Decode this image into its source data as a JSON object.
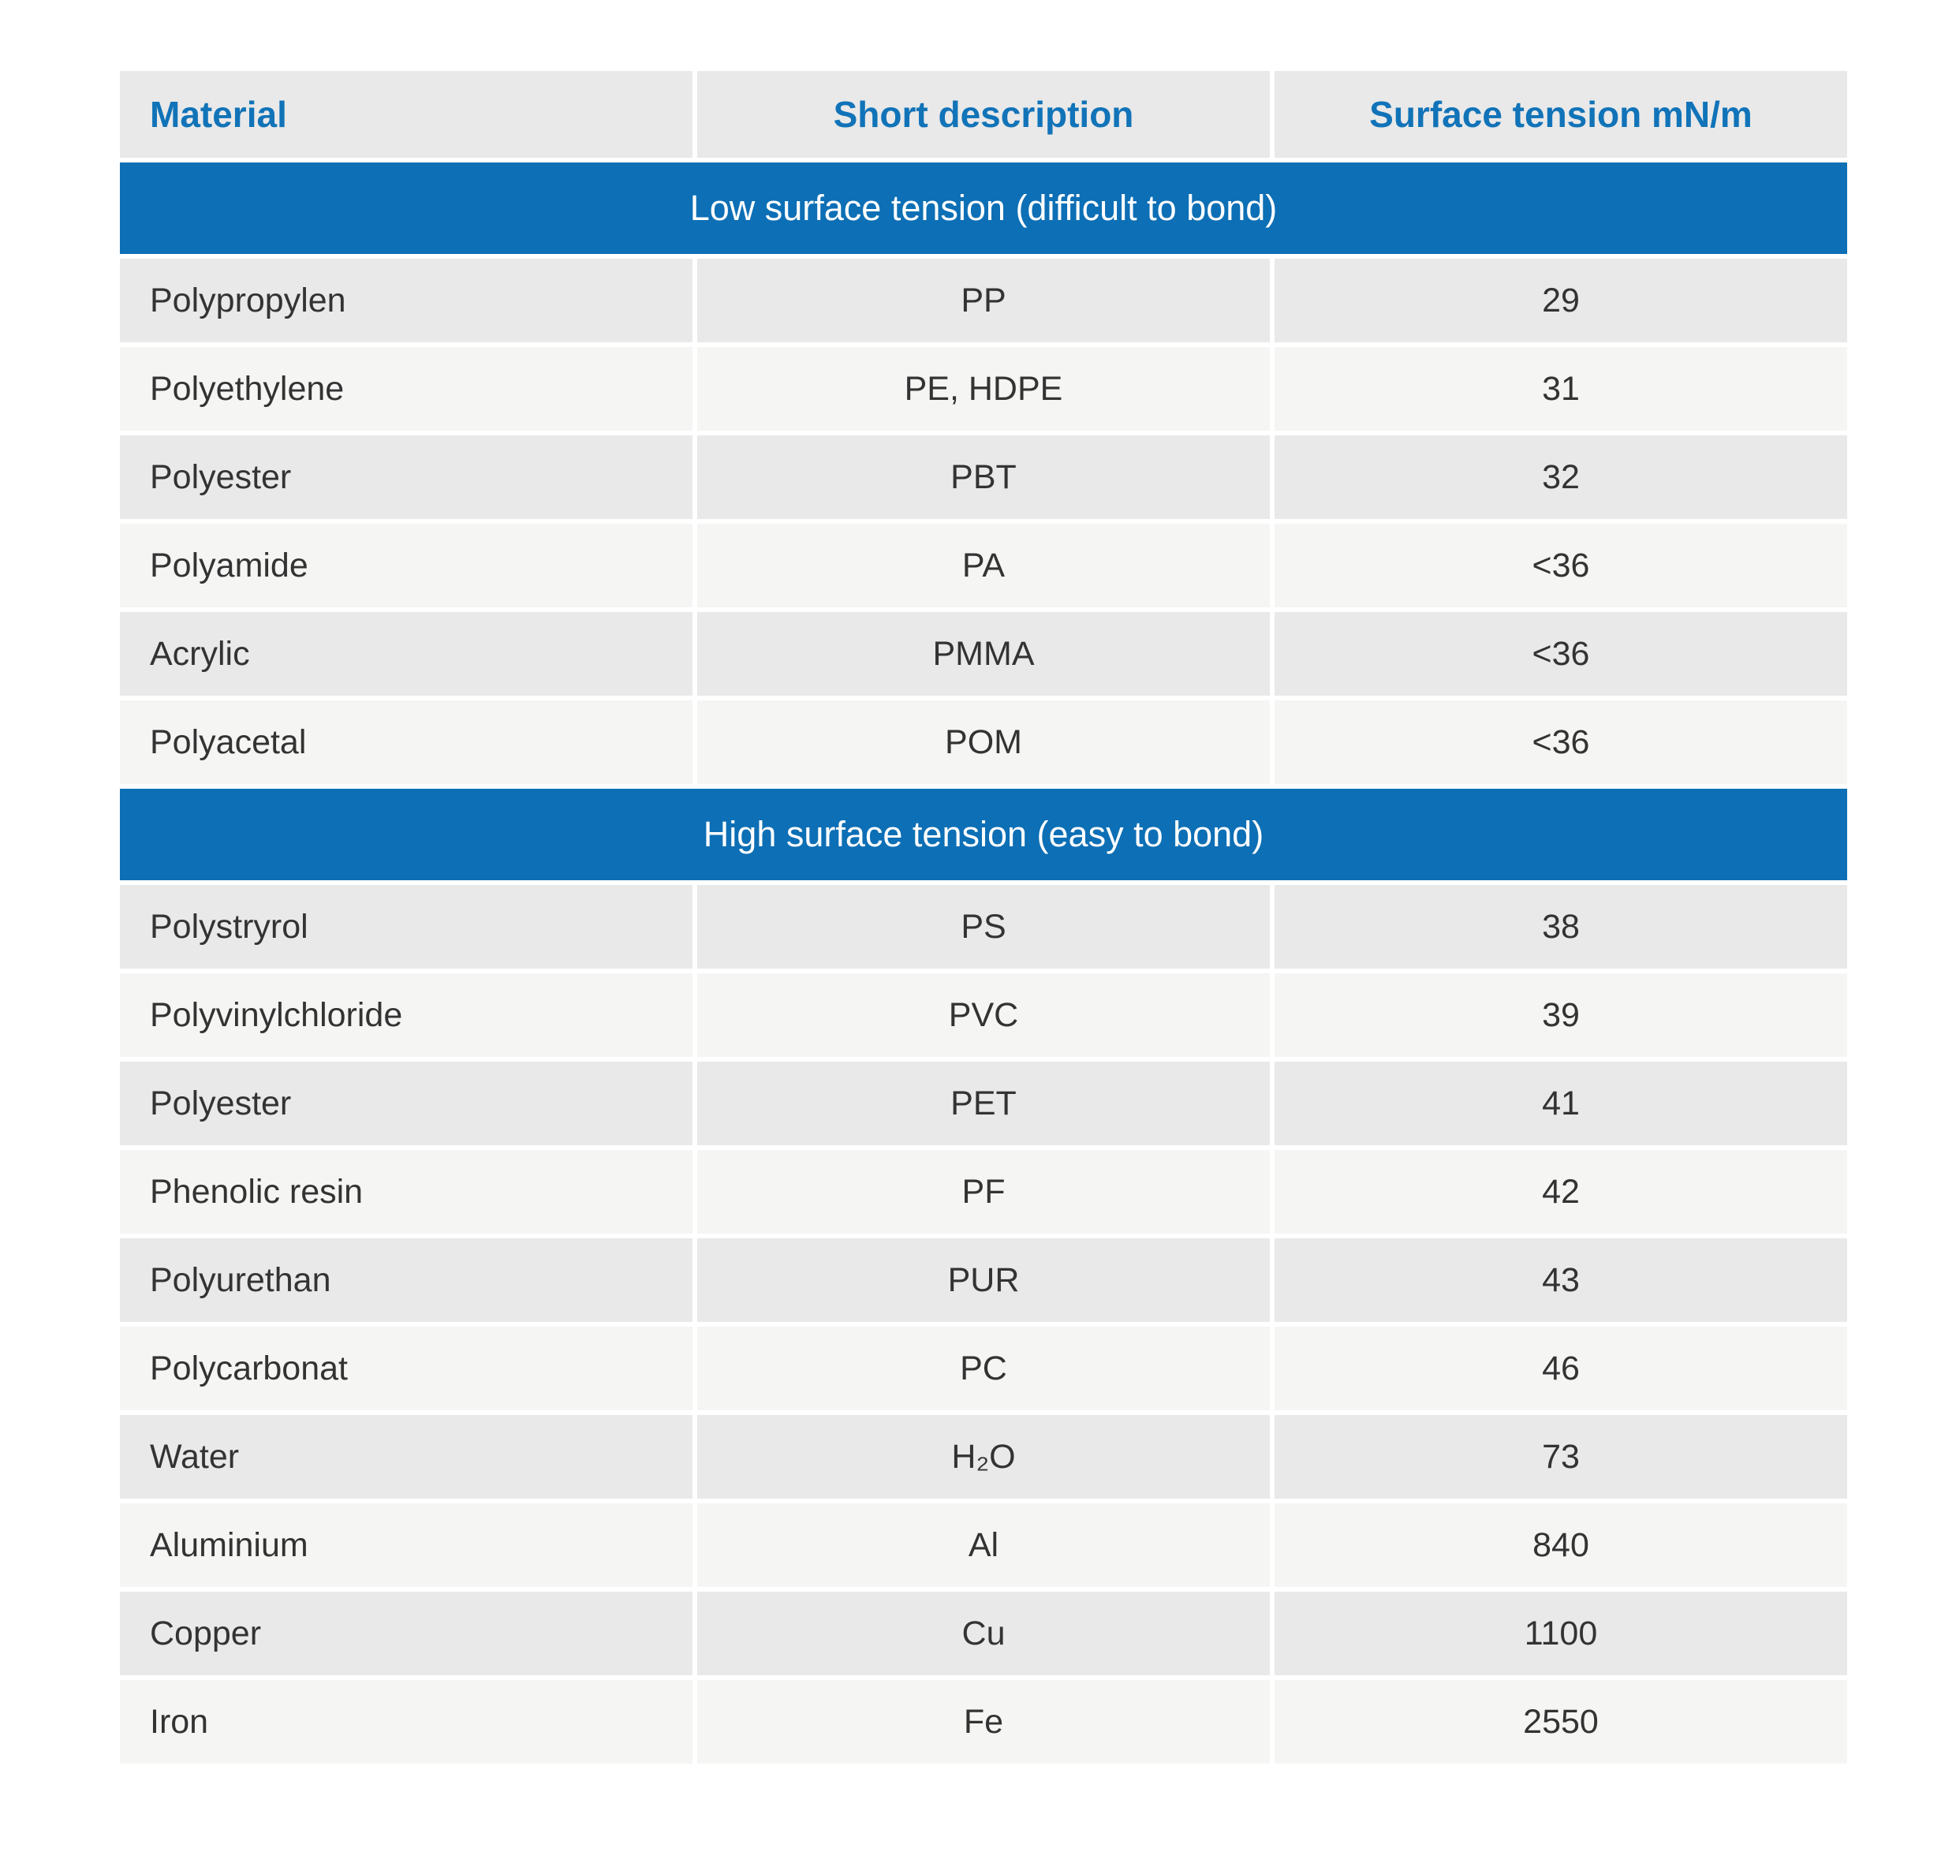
{
  "chart_data": {
    "type": "table",
    "columns": [
      "Material",
      "Short description",
      "Surface tension mN/m"
    ],
    "sections": [
      {
        "header": "Low surface tension (difficult to bond)",
        "rows": [
          {
            "material": "Polypropylen",
            "short": "PP",
            "tension": "29"
          },
          {
            "material": "Polyethylene",
            "short": "PE, HDPE",
            "tension": "31"
          },
          {
            "material": "Polyester",
            "short": "PBT",
            "tension": "32"
          },
          {
            "material": "Polyamide",
            "short": "PA",
            "tension": "<36"
          },
          {
            "material": "Acrylic",
            "short": "PMMA",
            "tension": "<36"
          },
          {
            "material": "Polyacetal",
            "short": "POM",
            "tension": "<36"
          }
        ]
      },
      {
        "header": "High surface tension (easy to bond)",
        "rows": [
          {
            "material": "Polystryrol",
            "short": "PS",
            "tension": "38"
          },
          {
            "material": "Polyvinylchloride",
            "short": "PVC",
            "tension": "39"
          },
          {
            "material": "Polyester",
            "short": "PET",
            "tension": "41"
          },
          {
            "material": "Phenolic resin",
            "short": "PF",
            "tension": "42"
          },
          {
            "material": "Polyurethan",
            "short": "PUR",
            "tension": "43"
          },
          {
            "material": "Polycarbonat",
            "short": "PC",
            "tension": "46"
          },
          {
            "material": "Water",
            "short": "H₂O",
            "tension": "73"
          },
          {
            "material": "Aluminium",
            "short": "Al",
            "tension": "840"
          },
          {
            "material": "Copper",
            "short": "Cu",
            "tension": "1100"
          },
          {
            "material": "Iron",
            "short": "Fe",
            "tension": "2550"
          }
        ]
      }
    ],
    "layout": {
      "grid": "off",
      "row_shading": "alternating",
      "section_banner_span": "full-width"
    }
  },
  "colors": {
    "accent_blue": "#0d6fb5",
    "header_text_blue": "#1173b8",
    "row_dark": "#e9e9e9",
    "row_light": "#f5f5f4",
    "body_text": "#333333",
    "banner_text": "#ffffff",
    "page_background": "#ffffff"
  }
}
